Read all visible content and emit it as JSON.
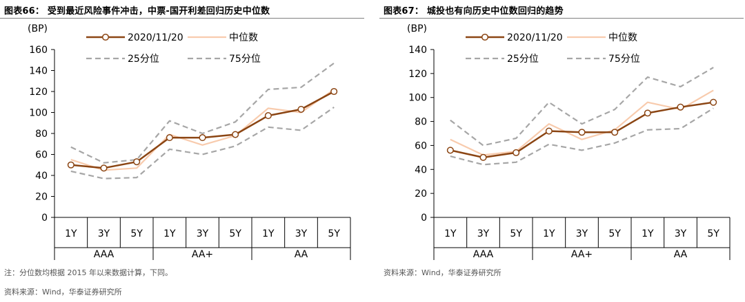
{
  "chart_data": [
    {
      "type": "line",
      "title": "图表66：  受到最近风险事件冲击，中票-国开利差回归历史中位数",
      "ylabel": "(BP)",
      "ylim": [
        0,
        160
      ],
      "yticks": [
        0,
        20,
        40,
        60,
        80,
        100,
        120,
        140,
        160
      ],
      "tenors": [
        "1Y",
        "3Y",
        "5Y",
        "1Y",
        "3Y",
        "5Y",
        "1Y",
        "3Y",
        "5Y"
      ],
      "groups": [
        "AAA",
        "AA+",
        "AA"
      ],
      "series": [
        {
          "name": "2020/11/20",
          "style": "marker",
          "color": "#8B4513",
          "values": [
            50,
            47,
            53,
            76,
            76,
            79,
            97,
            103,
            120
          ]
        },
        {
          "name": "中位数",
          "style": "solid",
          "color": "#F8CBAD",
          "values": [
            55,
            45,
            47,
            79,
            69,
            78,
            104,
            100,
            122
          ]
        },
        {
          "name": "25分位",
          "style": "dashed",
          "color": "#A6A6A6",
          "values": [
            44,
            37,
            38,
            65,
            60,
            68,
            86,
            83,
            105
          ]
        },
        {
          "name": "75分位",
          "style": "dashed",
          "color": "#A6A6A6",
          "values": [
            67,
            52,
            55,
            92,
            80,
            91,
            122,
            124,
            147
          ]
        }
      ],
      "legend": "top"
    },
    {
      "type": "line",
      "title": "图表67：  城投也有向历史中位数回归的趋势",
      "ylabel": "(BP)",
      "ylim": [
        0,
        140
      ],
      "yticks": [
        0,
        20,
        40,
        60,
        80,
        100,
        120,
        140
      ],
      "tenors": [
        "1Y",
        "3Y",
        "5Y",
        "1Y",
        "3Y",
        "5Y",
        "1Y",
        "3Y",
        "5Y"
      ],
      "groups": [
        "AAA",
        "AA+",
        "AA"
      ],
      "series": [
        {
          "name": "2020/11/20",
          "style": "marker",
          "color": "#8B4513",
          "values": [
            56,
            50,
            54,
            72,
            71,
            71,
            87,
            92,
            96
          ]
        },
        {
          "name": "中位数",
          "style": "solid",
          "color": "#F8CBAD",
          "values": [
            65,
            52,
            55,
            78,
            65,
            73,
            96,
            90,
            106
          ]
        },
        {
          "name": "25分位",
          "style": "dashed",
          "color": "#A6A6A6",
          "values": [
            51,
            44,
            46,
            61,
            56,
            62,
            73,
            74,
            91
          ]
        },
        {
          "name": "75分位",
          "style": "dashed",
          "color": "#A6A6A6",
          "values": [
            81,
            60,
            66,
            96,
            78,
            90,
            117,
            109,
            125
          ]
        }
      ],
      "legend": "top"
    }
  ],
  "notes": {
    "left_note": "注：分位数均根据 2015 年以来数据计算，下同。",
    "left_source": "资料来源：Wind，华泰证券研究所",
    "right_source": "资料来源：Wind，华泰证券研究所"
  }
}
